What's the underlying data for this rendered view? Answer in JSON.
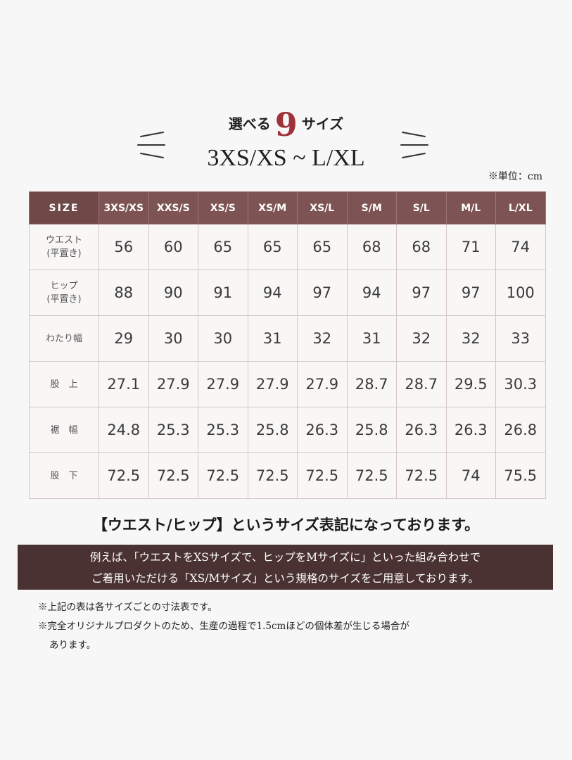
{
  "header": {
    "prefix": "選べる",
    "number": "9",
    "suffix": "サイズ",
    "range": "3XS/XS ~ L/XL",
    "unit_note": "※単位：cm",
    "accent_color": "#a0303a"
  },
  "table": {
    "header_label": "SIZE",
    "header_color": "#7d5453",
    "columns": [
      "3XS/XS",
      "XXS/S",
      "XS/S",
      "XS/M",
      "XS/L",
      "S/M",
      "S/L",
      "M/L",
      "L/XL"
    ],
    "rows": [
      {
        "label": "ウエスト\n(平置き)",
        "values": [
          "56",
          "60",
          "65",
          "65",
          "65",
          "68",
          "68",
          "71",
          "74"
        ]
      },
      {
        "label": "ヒップ\n(平置き)",
        "values": [
          "88",
          "90",
          "91",
          "94",
          "97",
          "94",
          "97",
          "97",
          "100"
        ]
      },
      {
        "label": "わたり幅",
        "values": [
          "29",
          "30",
          "30",
          "31",
          "32",
          "31",
          "32",
          "32",
          "33"
        ]
      },
      {
        "label": "股　上",
        "values": [
          "27.1",
          "27.9",
          "27.9",
          "27.9",
          "27.9",
          "28.7",
          "28.7",
          "29.5",
          "30.3"
        ]
      },
      {
        "label": "裾　幅",
        "values": [
          "24.8",
          "25.3",
          "25.3",
          "25.8",
          "26.3",
          "25.8",
          "26.3",
          "26.3",
          "26.8"
        ]
      },
      {
        "label": "股　下",
        "values": [
          "72.5",
          "72.5",
          "72.5",
          "72.5",
          "72.5",
          "72.5",
          "72.5",
          "74",
          "75.5"
        ]
      }
    ]
  },
  "notes": {
    "main": "【ウエスト/ヒップ】というサイズ表記になっております。",
    "banner_line1": "例えば、「ウエストをXSサイズで、ヒップをMサイズに」といった組み合わせで",
    "banner_line2": "ご着用いただける「XS/Mサイズ」という規格のサイズをご用意しております。",
    "banner_color": "#4a3232",
    "footnote1": "※上記の表は各サイズごとの寸法表です。",
    "footnote2": "※完全オリジナルプロダクトのため、生産の過程で1.5cmほどの個体差が生じる場合が",
    "footnote2_cont": "あります。"
  }
}
